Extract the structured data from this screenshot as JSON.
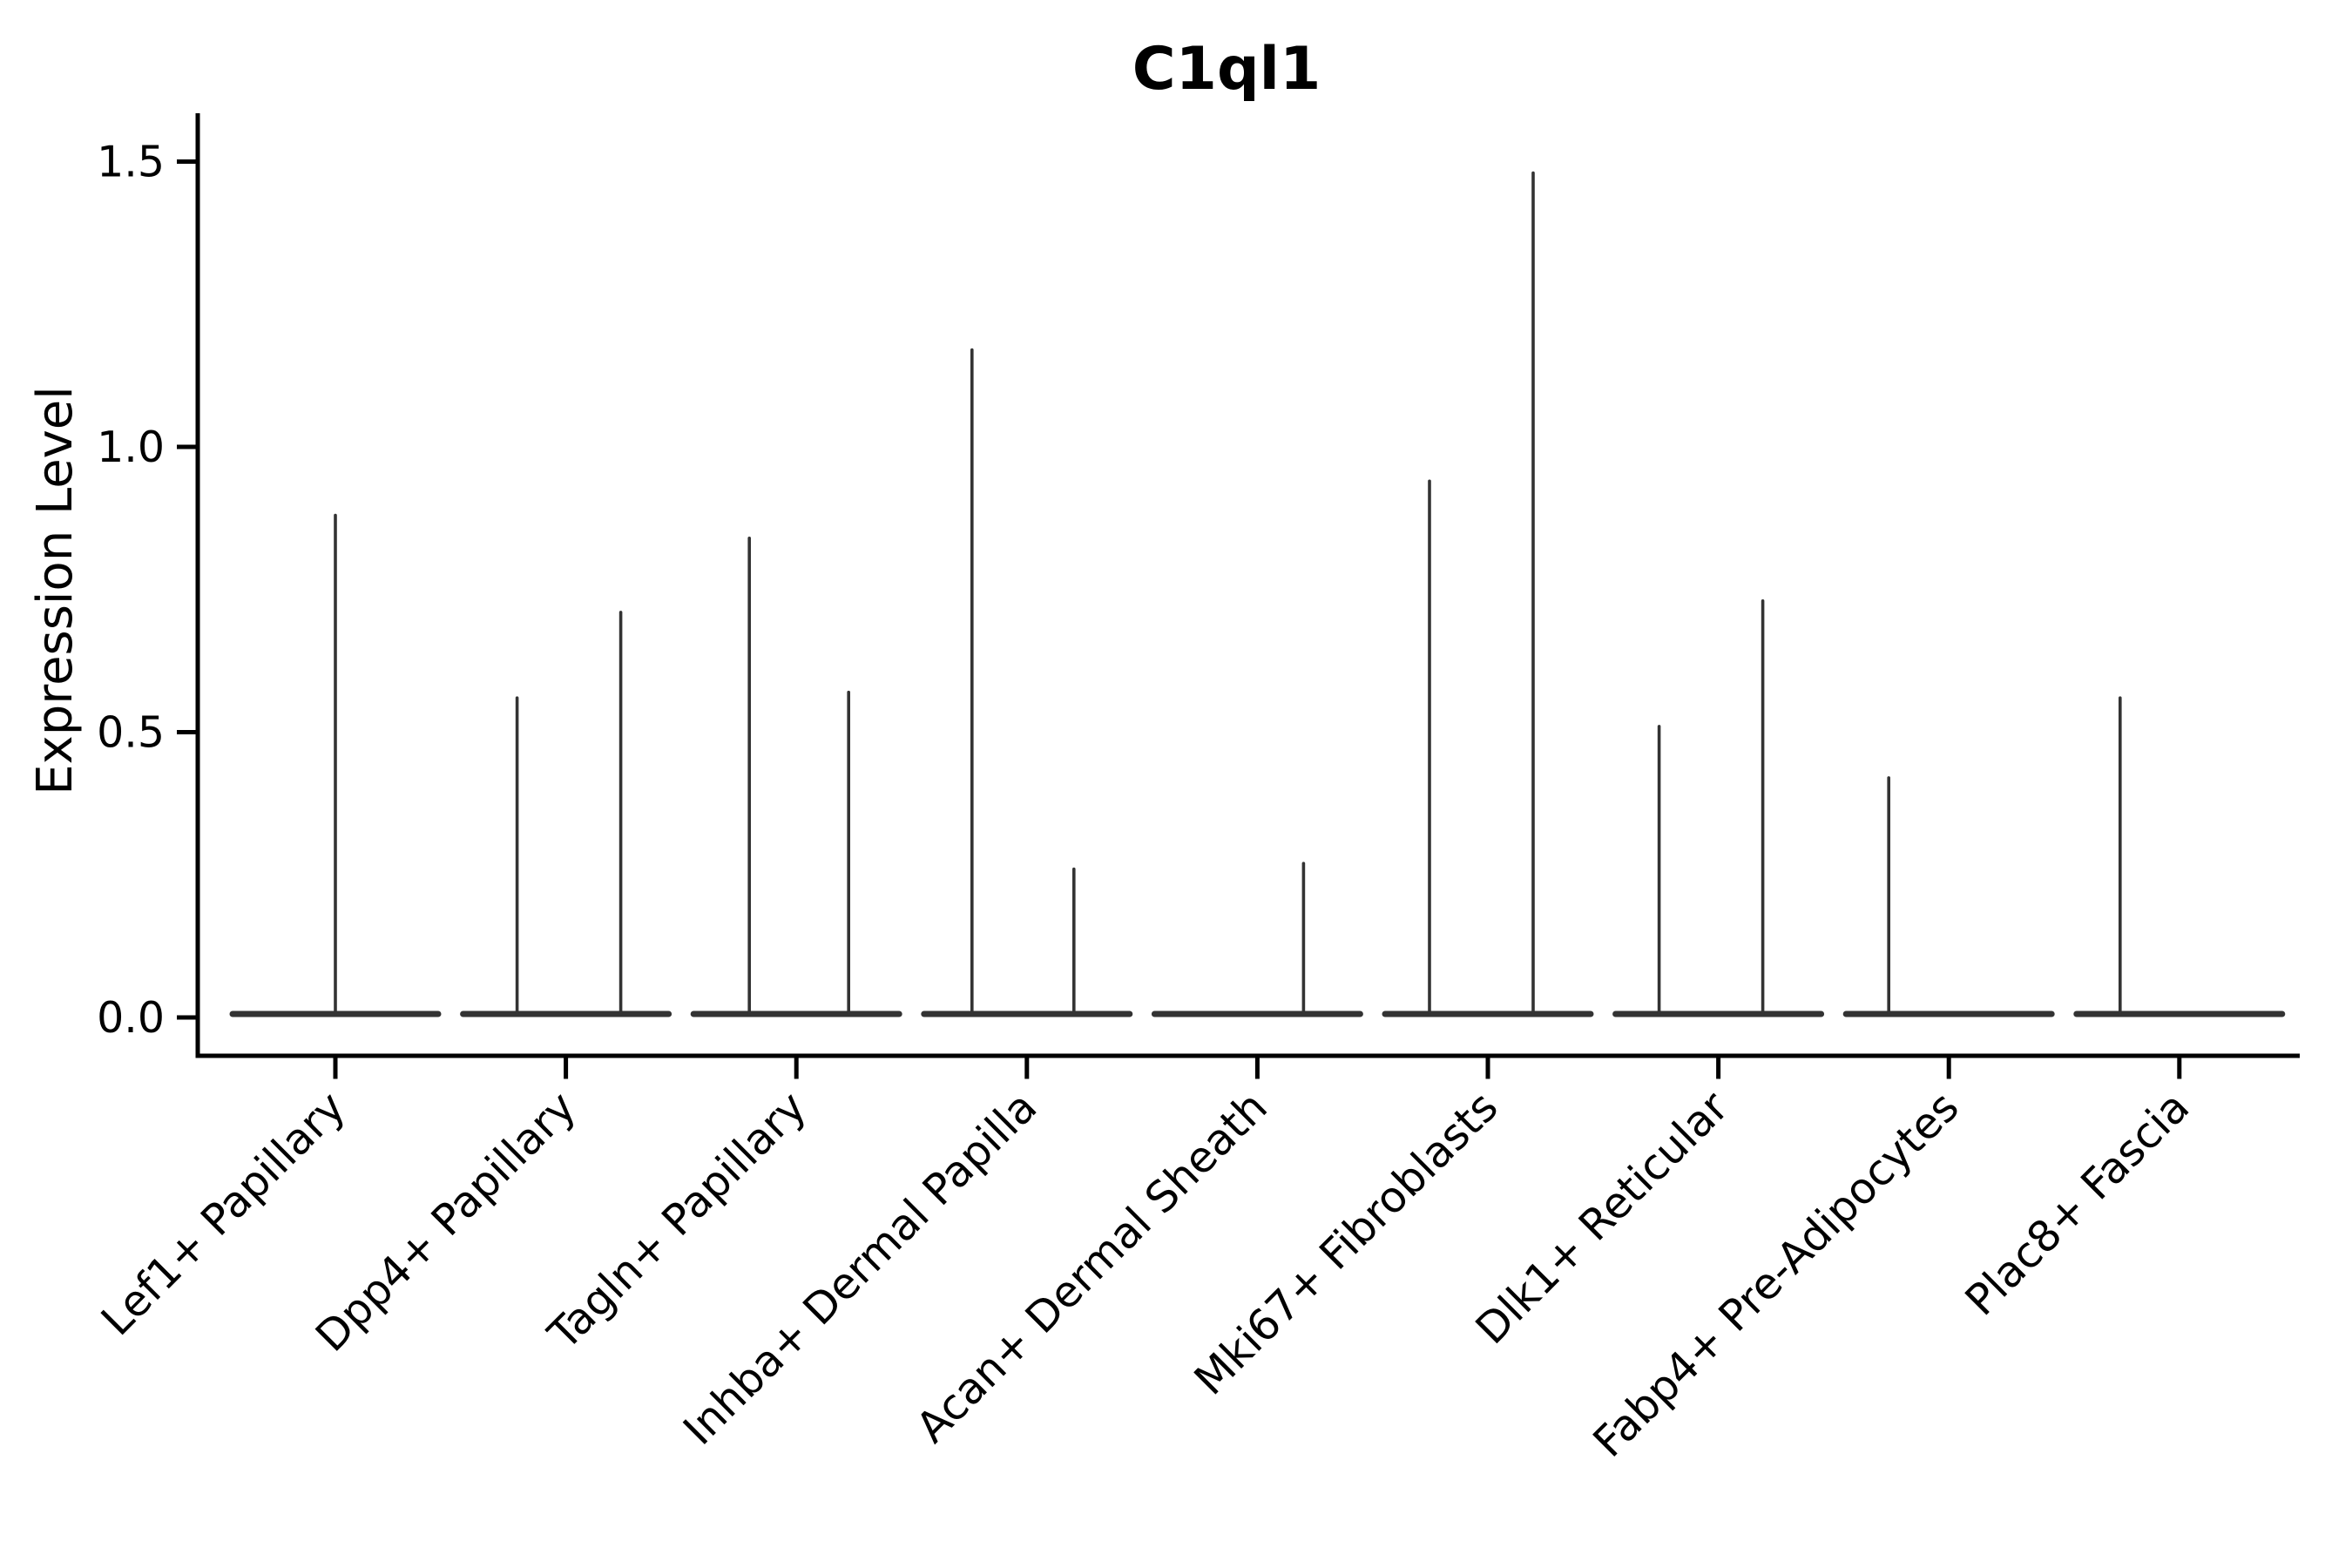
{
  "title": "C1ql1",
  "chart_data": {
    "type": "violin",
    "title": "C1ql1",
    "xlabel": "",
    "ylabel": "Expression Level",
    "yticks": [
      0.0,
      0.5,
      1.0,
      1.5
    ],
    "ylim": [
      -0.07,
      1.56
    ],
    "grid": false,
    "legend": null,
    "violin_stroke_color": "#333333",
    "axis_color": "#000000",
    "note": "Each labeled group shows a near-zero-width violin: a flat baseline at expression 0 with one or two thin vertical density spikes reaching the maximum expression value.",
    "categories": [
      {
        "label": "Lef1+ Papillary",
        "spikes": [
          {
            "dx": 0,
            "max": 0.88
          }
        ]
      },
      {
        "label": "Dpp4+ Papillary",
        "spikes": [
          {
            "dx": -56,
            "max": 0.56
          },
          {
            "dx": 63,
            "max": 0.71
          }
        ]
      },
      {
        "label": "Tagln+ Papillary",
        "spikes": [
          {
            "dx": -54,
            "max": 0.84
          },
          {
            "dx": 60,
            "max": 0.57
          }
        ]
      },
      {
        "label": "Inhba+ Dermal Papilla",
        "spikes": [
          {
            "dx": -63,
            "max": 1.17
          },
          {
            "dx": 54,
            "max": 0.26
          }
        ]
      },
      {
        "label": "Acan+ Dermal Sheath",
        "spikes": [
          {
            "dx": 53,
            "max": 0.27
          }
        ]
      },
      {
        "label": "Mki67+ Fibroblasts",
        "spikes": [
          {
            "dx": -67,
            "max": 0.94
          },
          {
            "dx": 52,
            "max": 1.48
          }
        ]
      },
      {
        "label": "Dlk1+ Reticular",
        "spikes": [
          {
            "dx": -68,
            "max": 0.51
          },
          {
            "dx": 51,
            "max": 0.73
          }
        ]
      },
      {
        "label": "Fabp4+ Pre-Adipocytes",
        "spikes": [
          {
            "dx": -69,
            "max": 0.42
          }
        ]
      },
      {
        "label": "Plac8+ Fascia",
        "spikes": [
          {
            "dx": -68,
            "max": 0.56
          }
        ]
      }
    ]
  }
}
